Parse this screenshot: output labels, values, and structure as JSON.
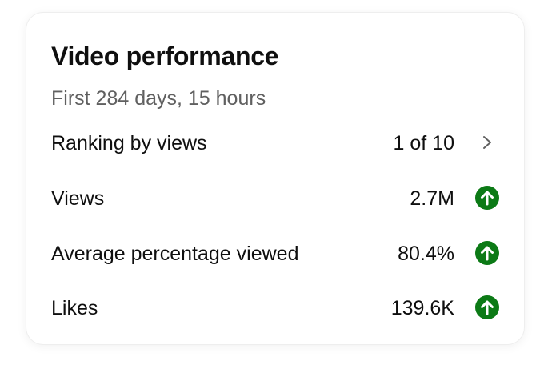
{
  "card": {
    "title": "Video performance",
    "subtitle": "First 284 days, 15 hours"
  },
  "rows": [
    {
      "label": "Ranking by views",
      "value": "1 of 10",
      "icon": "chevron-right-icon"
    },
    {
      "label": "Views",
      "value": "2.7M",
      "icon": "arrow-up-circle-icon"
    },
    {
      "label": "Average percentage viewed",
      "value": "80.4%",
      "icon": "arrow-up-circle-icon"
    },
    {
      "label": "Likes",
      "value": "139.6K",
      "icon": "arrow-up-circle-icon"
    }
  ],
  "colors": {
    "up_indicator": "#0c7a16",
    "chevron": "#606060"
  }
}
